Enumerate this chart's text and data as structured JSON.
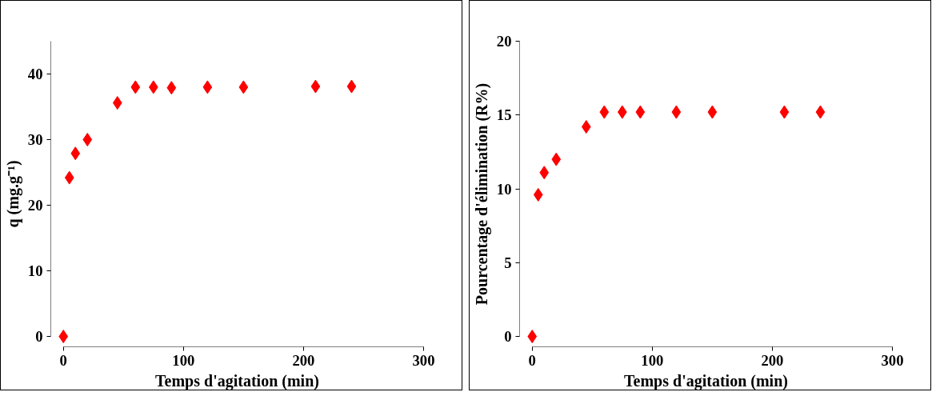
{
  "chart_data": [
    {
      "type": "scatter",
      "xlabel": "Temps d'agitation (min)",
      "ylabel": "q (mg.g⁻¹)",
      "x": [
        0,
        5,
        10,
        20,
        45,
        60,
        75,
        90,
        120,
        150,
        210,
        240
      ],
      "series": [
        {
          "color": "#ff0000",
          "values": [
            0,
            24.2,
            27.9,
            30,
            35.6,
            38,
            38,
            37.9,
            38,
            38,
            38.1,
            38.1
          ]
        }
      ],
      "xlim": [
        0,
        300
      ],
      "xticks": [
        0,
        100,
        200,
        300
      ],
      "ylim": [
        0,
        45
      ],
      "yticks": [
        0,
        10,
        20,
        30,
        40
      ],
      "marker": "diamond"
    },
    {
      "type": "scatter",
      "xlabel": "Temps d'agitation (min)",
      "ylabel": "Pourcentage d'élimination (R%)",
      "x": [
        0,
        5,
        10,
        20,
        45,
        60,
        75,
        90,
        120,
        150,
        210,
        240
      ],
      "series": [
        {
          "color": "#ff0000",
          "values": [
            0,
            9.6,
            11.1,
            12,
            14.2,
            15.2,
            15.2,
            15.2,
            15.2,
            15.2,
            15.2,
            15.2
          ]
        }
      ],
      "xlim": [
        0,
        300
      ],
      "xticks": [
        0,
        100,
        200,
        300
      ],
      "ylim": [
        0,
        20
      ],
      "yticks": [
        0,
        5,
        10,
        15,
        20
      ],
      "marker": "diamond"
    }
  ]
}
